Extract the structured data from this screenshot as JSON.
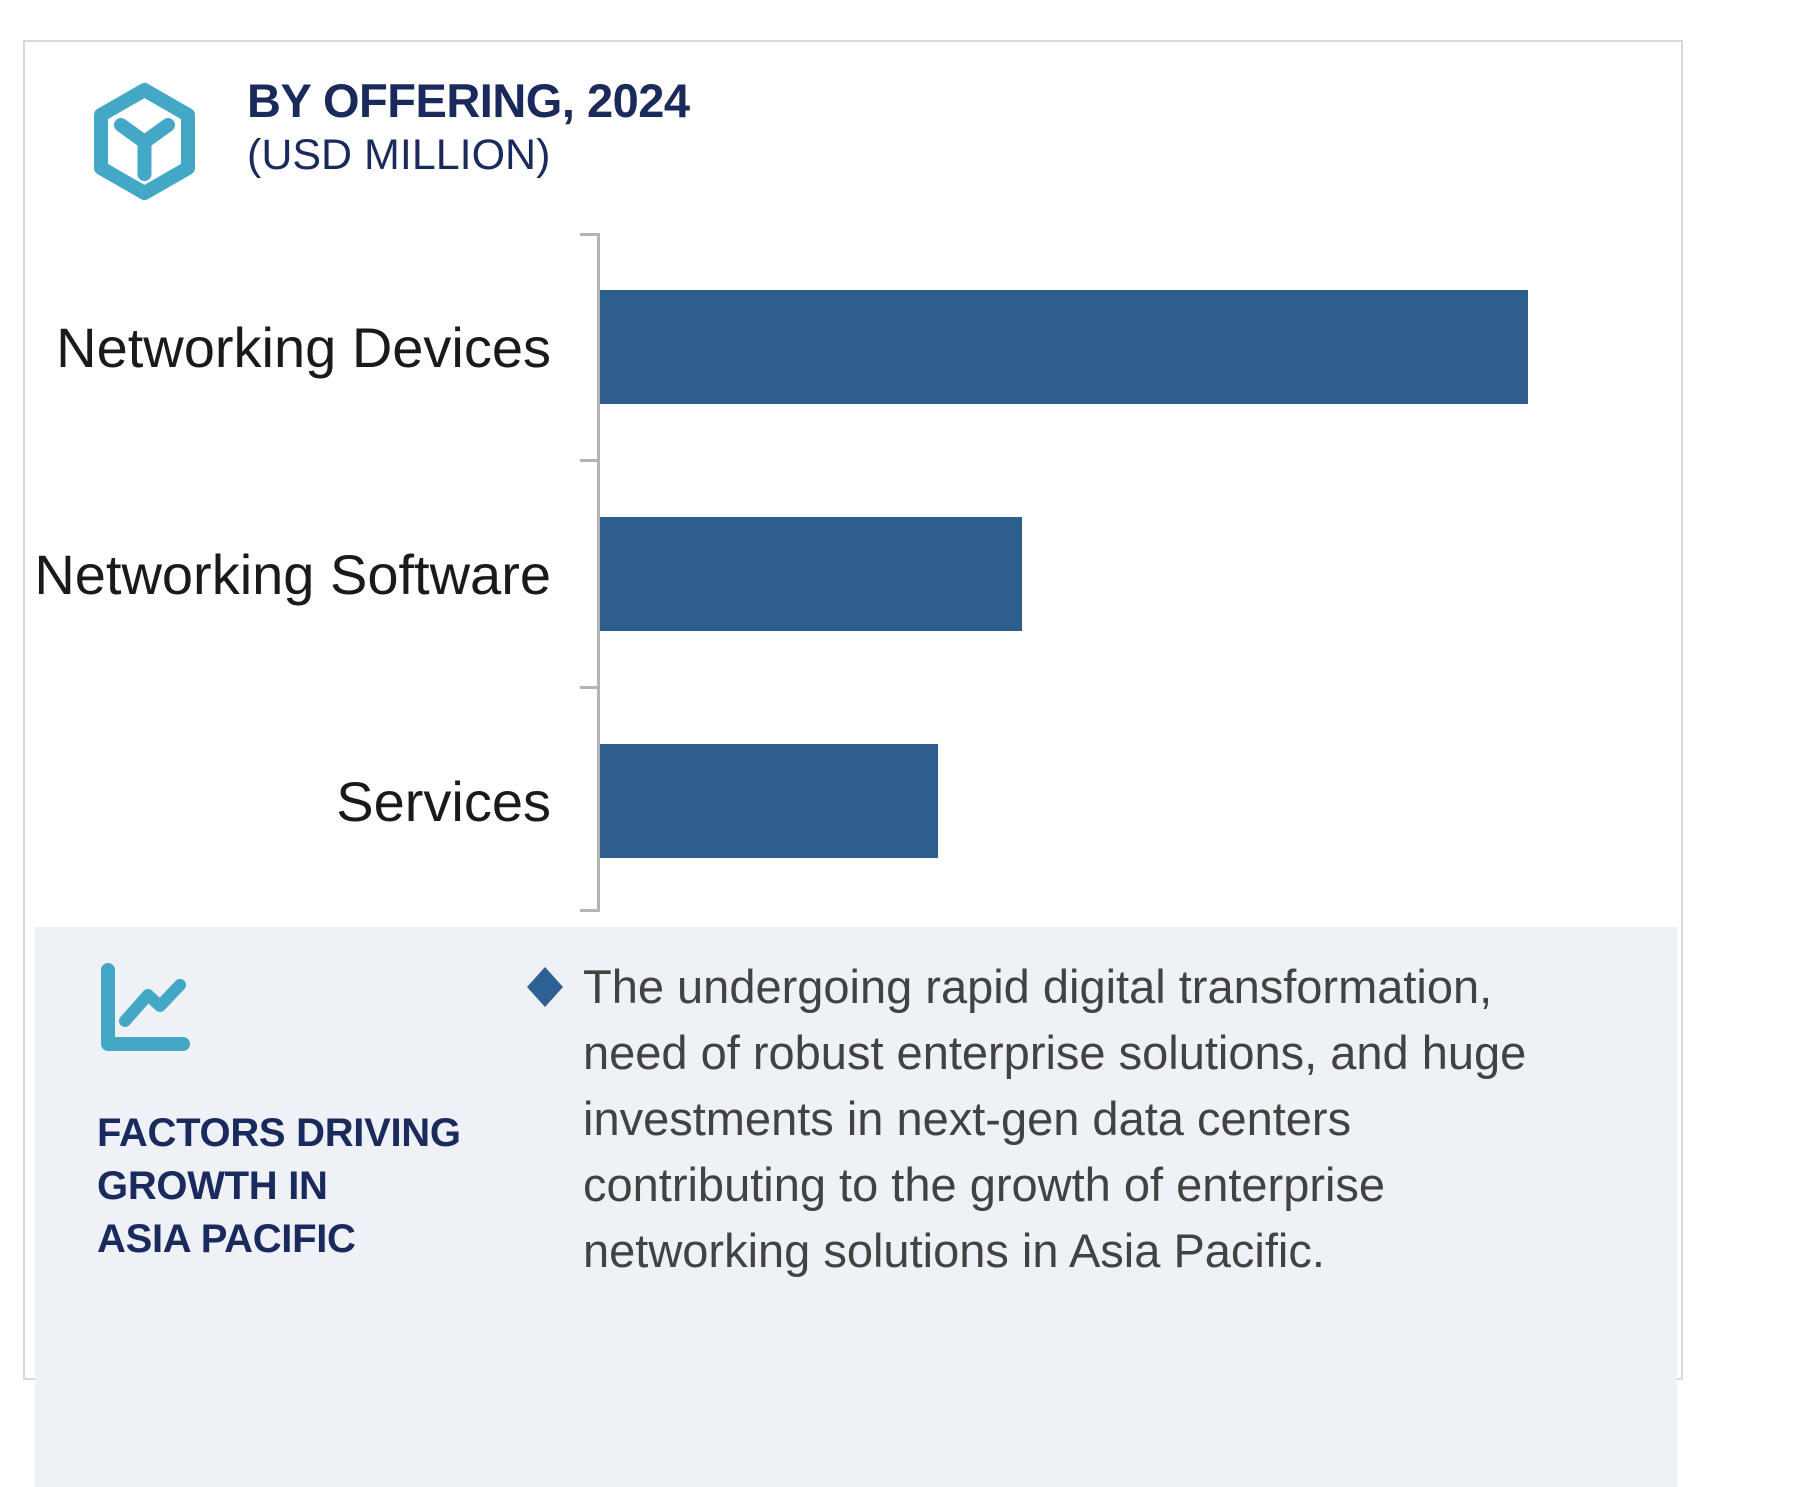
{
  "colors": {
    "navy": "#1a2a5c",
    "teal": "#42a8c6",
    "bar_blue": "#2d5e8e",
    "diamond_blue": "#2e6093",
    "panel_bg": "#eef1f6",
    "axis_gray": "#b4b4b4",
    "card_border": "#d9d9d9",
    "label_text": "#1a1a1a",
    "body_text": "#424242"
  },
  "header": {
    "title": "BY OFFERING, 2024",
    "subtitle": "(USD MILLION)",
    "icon": "hexagon-box-icon"
  },
  "chart_data": {
    "type": "bar",
    "orientation": "horizontal",
    "title": "BY OFFERING, 2024",
    "units_label": "(USD MILLION)",
    "categories": [
      "Networking Devices",
      "Networking Software",
      "Services"
    ],
    "values": [
      928,
      422,
      338
    ],
    "xlim": [
      0,
      1088
    ],
    "axis_numbers_shown": false,
    "data_labels_shown": false,
    "grid": false,
    "legend": false,
    "bar_color": "#2d5e8e"
  },
  "panel": {
    "icon": "line-chart-icon",
    "heading_lines": [
      "FACTORS DRIVING",
      "GROWTH IN",
      "ASIA PACIFIC"
    ],
    "bullet_marker": "diamond",
    "bullet_lines": [
      "The undergoing rapid digital transformation,",
      "need of robust enterprise solutions, and huge",
      "investments in next-gen data centers",
      "contributing to the growth of enterprise",
      "networking solutions in Asia Pacific."
    ]
  }
}
